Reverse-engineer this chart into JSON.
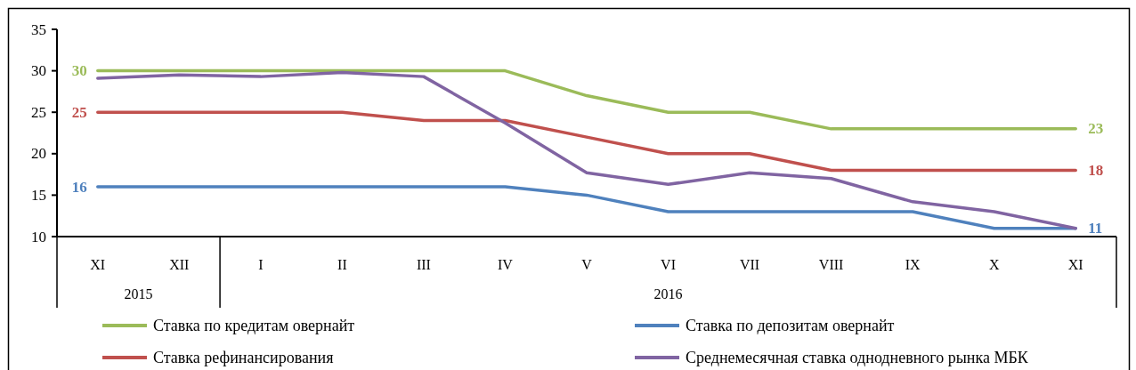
{
  "chart_data": {
    "type": "line",
    "categories": [
      "XI",
      "XII",
      "I",
      "II",
      "III",
      "IV",
      "V",
      "VI",
      "VII",
      "VIII",
      "IX",
      "X",
      "XI"
    ],
    "series": [
      {
        "name": "Ставка по кредитам овернайт",
        "color": "#9bbb59",
        "values": [
          30,
          30,
          30,
          30,
          30,
          30,
          27,
          25,
          25,
          23,
          23,
          23,
          23
        ],
        "value_labels": [
          "30",
          null,
          null,
          null,
          null,
          null,
          null,
          null,
          null,
          null,
          null,
          null,
          "23"
        ]
      },
      {
        "name": "Ставка по депозитам овернайт",
        "color": "#4f81bd",
        "values": [
          16,
          16,
          16,
          16,
          16,
          16,
          15,
          13,
          13,
          13,
          13,
          11,
          11
        ],
        "value_labels": [
          "16",
          null,
          null,
          null,
          null,
          null,
          null,
          null,
          null,
          null,
          null,
          null,
          "11"
        ]
      },
      {
        "name": "Ставка рефинансирования",
        "color": "#c0504d",
        "values": [
          25,
          25,
          25,
          25,
          24,
          24,
          22,
          20,
          20,
          18,
          18,
          18,
          18
        ],
        "value_labels": [
          "25",
          null,
          null,
          null,
          null,
          null,
          null,
          null,
          null,
          null,
          null,
          null,
          "18"
        ]
      },
      {
        "name": "Среднемесячная ставка однодневного рынка МБК",
        "color": "#8064a2",
        "values": [
          29.1,
          29.5,
          29.3,
          29.8,
          29.3,
          23.7,
          17.7,
          16.3,
          17.7,
          17.0,
          14.2,
          13.0,
          11
        ]
      }
    ],
    "ylim": [
      10,
      35
    ],
    "yticks": [
      10,
      15,
      20,
      25,
      30,
      35
    ],
    "legend": "bottom",
    "annotations": [
      "2015",
      "2016"
    ]
  }
}
